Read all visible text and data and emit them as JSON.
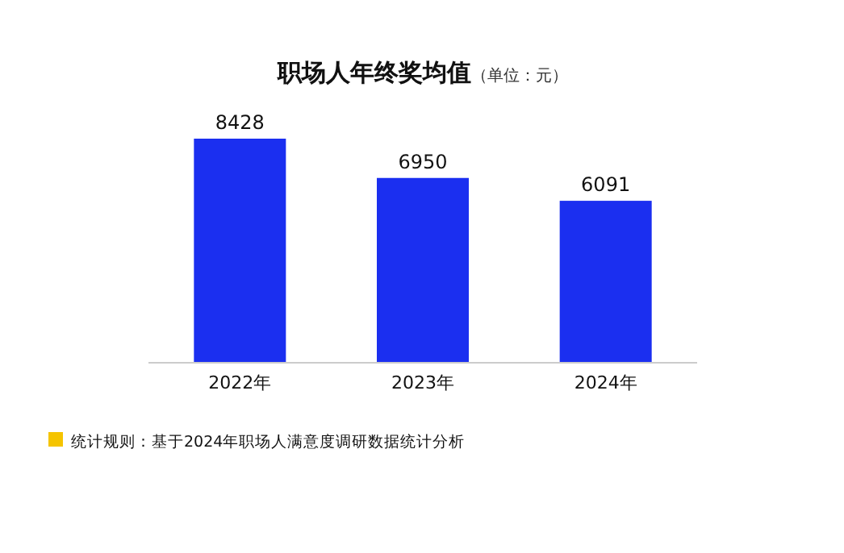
{
  "chart_data": {
    "type": "bar",
    "title": "职场人年终奖均值",
    "subtitle": "（单位：元）",
    "categories": [
      "2022年",
      "2023年",
      "2024年"
    ],
    "values": [
      8428,
      6950,
      6091
    ],
    "color": "#1b2ff0",
    "data_labels": true,
    "annotations": [
      "统计规则：基于2024年职场人满意度调研数据统计分析"
    ]
  }
}
